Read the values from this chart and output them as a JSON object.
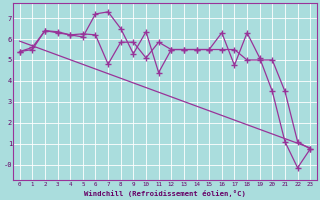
{
  "xlabel": "Windchill (Refroidissement éolien,°C)",
  "line_color": "#993399",
  "bg_color": "#aadddd",
  "grid_color": "#ffffff",
  "xlim": [
    -0.5,
    23.5
  ],
  "ylim": [
    -0.75,
    7.7
  ],
  "xticks": [
    0,
    1,
    2,
    3,
    4,
    5,
    6,
    7,
    8,
    9,
    10,
    11,
    12,
    13,
    14,
    15,
    16,
    17,
    18,
    19,
    20,
    21,
    22,
    23
  ],
  "yticks": [
    0,
    1,
    2,
    3,
    4,
    5,
    6,
    7
  ],
  "ytick_labels": [
    "-0",
    "1",
    "2",
    "3",
    "4",
    "5",
    "6",
    "7"
  ],
  "series1_x": [
    0,
    1,
    2,
    3,
    4,
    5,
    6,
    7,
    8,
    9,
    10,
    11,
    12,
    13,
    14,
    15,
    16,
    17,
    18,
    19,
    20,
    21,
    22,
    23
  ],
  "series1_y": [
    5.4,
    5.5,
    6.4,
    6.3,
    6.2,
    6.1,
    7.2,
    7.3,
    6.5,
    5.3,
    6.35,
    4.4,
    5.5,
    5.5,
    5.5,
    5.5,
    6.3,
    4.75,
    6.3,
    5.1,
    3.5,
    1.1,
    -0.15,
    0.75
  ],
  "series2_x": [
    0,
    1,
    2,
    3,
    4,
    5,
    6,
    7,
    8,
    9,
    10,
    11,
    12,
    13,
    14,
    15,
    16,
    17,
    18,
    19,
    20,
    21,
    22,
    23
  ],
  "series2_y": [
    5.4,
    5.6,
    6.4,
    6.35,
    6.2,
    6.25,
    6.2,
    4.8,
    5.85,
    5.85,
    5.1,
    5.85,
    5.5,
    5.5,
    5.5,
    5.5,
    5.5,
    5.5,
    5.0,
    5.0,
    5.0,
    3.5,
    1.1,
    0.75
  ],
  "series3_x": [
    0,
    23
  ],
  "series3_y": [
    5.9,
    0.8
  ]
}
